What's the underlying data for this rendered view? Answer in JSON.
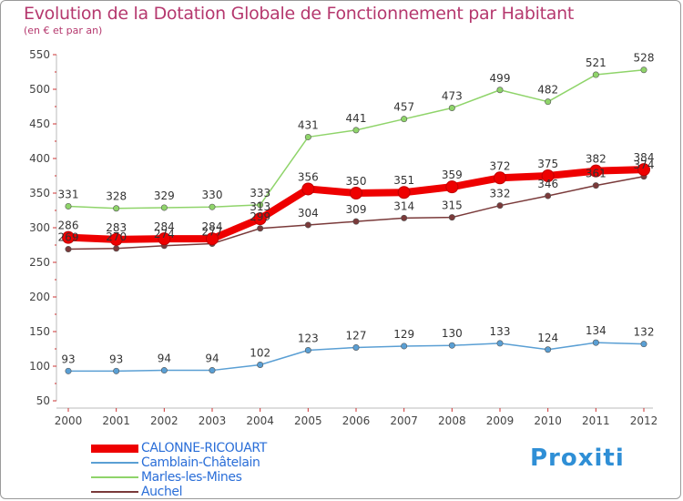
{
  "chart_data": {
    "type": "line",
    "title": "Evolution de la Dotation Globale de Fonctionnement par Habitant",
    "subtitle": "(en € et par an)",
    "categories": [
      "2000",
      "2001",
      "2002",
      "2003",
      "2004",
      "2005",
      "2006",
      "2007",
      "2008",
      "2009",
      "2010",
      "2011",
      "2012"
    ],
    "ylim": [
      50,
      550
    ],
    "yticks": [
      50,
      100,
      150,
      200,
      250,
      300,
      350,
      400,
      450,
      500,
      550
    ],
    "grid": false,
    "legend_position": "bottom-left",
    "series": [
      {
        "name": "CALONNE-RICOUART",
        "color": "#ee0000",
        "emphasis": true,
        "values": [
          286,
          283,
          284,
          284,
          313,
          356,
          350,
          351,
          359,
          372,
          375,
          382,
          384
        ],
        "labels": [
          "286",
          "283",
          "284",
          "284",
          "313",
          "356",
          "350",
          "351",
          "359",
          "372",
          "375",
          "382",
          "384"
        ]
      },
      {
        "name": "Camblain-Châtelain",
        "color": "#5a9fd4",
        "emphasis": false,
        "values": [
          93,
          93,
          94,
          94,
          102,
          123,
          127,
          129,
          130,
          133,
          124,
          134,
          132
        ],
        "labels": [
          "93",
          "93",
          "94",
          "94",
          "102",
          "123",
          "127",
          "129",
          "130",
          "133",
          "124",
          "134",
          "132"
        ]
      },
      {
        "name": "Marles-les-Mines",
        "color": "#8fd46a",
        "emphasis": false,
        "values": [
          331,
          328,
          329,
          330,
          333,
          431,
          441,
          457,
          473,
          499,
          482,
          521,
          528
        ],
        "labels": [
          "331",
          "328",
          "329",
          "330",
          "333",
          "431",
          "441",
          "457",
          "473",
          "499",
          "482",
          "521",
          "528"
        ]
      },
      {
        "name": "Auchel",
        "color": "#7a3a3a",
        "emphasis": false,
        "values": [
          269,
          270,
          274,
          277,
          299,
          304,
          309,
          314,
          315,
          332,
          346,
          361,
          374
        ],
        "labels": [
          "269",
          "270",
          "274",
          "277",
          "299",
          "304",
          "309",
          "314",
          "315",
          "332",
          "346",
          "361",
          "374"
        ]
      }
    ]
  },
  "logo": {
    "text": "Proxiti"
  }
}
